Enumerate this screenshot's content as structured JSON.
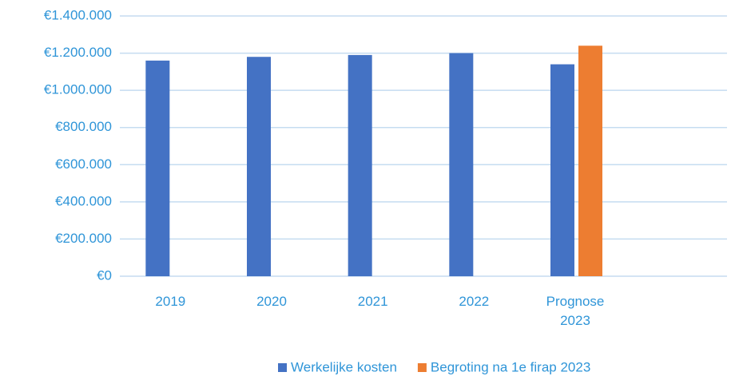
{
  "chart_data": {
    "type": "bar",
    "categories": [
      "2019",
      "2020",
      "2021",
      "2022",
      "Prognose 2023",
      null
    ],
    "series": [
      {
        "name": "Werkelijke kosten",
        "color": "#4472c4",
        "values": [
          1160000,
          1180000,
          1190000,
          1200000,
          1140000,
          null
        ]
      },
      {
        "name": "Begroting na 1e firap 2023",
        "color": "#ed7d31",
        "values": [
          null,
          null,
          null,
          null,
          1240000,
          null
        ]
      }
    ],
    "ylim": [
      0,
      1400000
    ],
    "yticks": [
      {
        "value": 0,
        "label": "€0"
      },
      {
        "value": 200000,
        "label": "€200.000"
      },
      {
        "value": 400000,
        "label": "€400.000"
      },
      {
        "value": 600000,
        "label": "€600.000"
      },
      {
        "value": 800000,
        "label": "€800.000"
      },
      {
        "value": 1000000,
        "label": "€1.000.000"
      },
      {
        "value": 1200000,
        "label": "€1.200.000"
      },
      {
        "value": 1400000,
        "label": "€1.400.000"
      }
    ],
    "grid": true,
    "legend": "bottom"
  }
}
